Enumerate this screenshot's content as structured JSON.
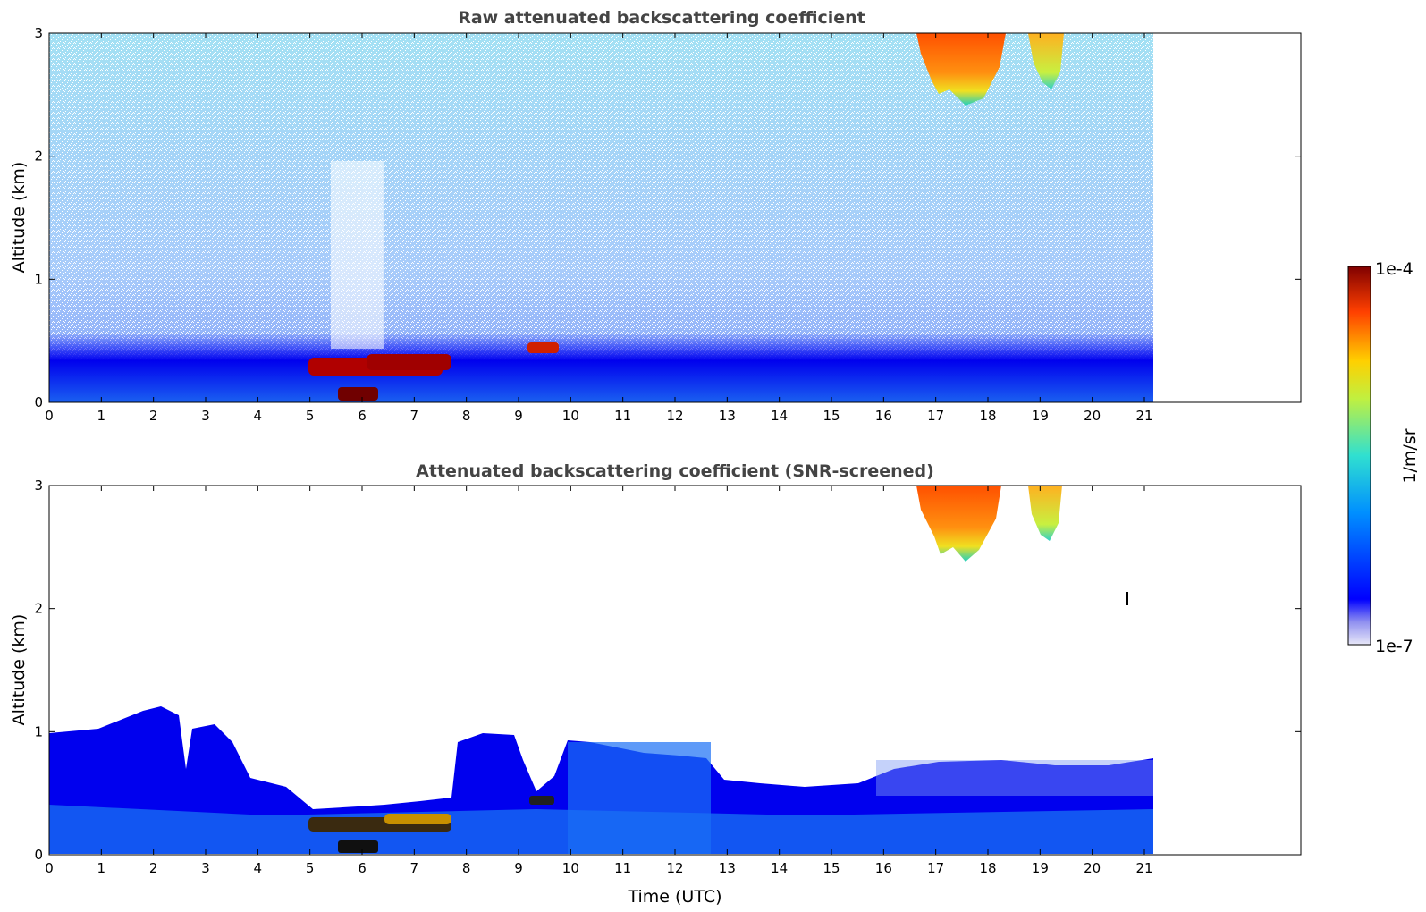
{
  "figure": {
    "colormap": "jet",
    "colorbar": {
      "max_label": "1e-4",
      "min_label": "1e-7",
      "label": "1/m/sr",
      "range": [
        1e-07,
        0.0001
      ],
      "scale": "log"
    }
  },
  "chart_data": [
    {
      "type": "heatmap",
      "title": "Raw attenuated backscattering coefficient",
      "xlabel": "",
      "ylabel": "Altitude (km)",
      "xlim": [
        0,
        24
      ],
      "ylim": [
        0,
        3
      ],
      "x_ticks": [
        "0",
        "1",
        "2",
        "3",
        "4",
        "5",
        "6",
        "7",
        "8",
        "9",
        "10",
        "11",
        "12",
        "13",
        "14",
        "15",
        "16",
        "17",
        "18",
        "19",
        "20",
        "21"
      ],
      "y_ticks": [
        "0",
        "1",
        "2",
        "3"
      ],
      "data_end_time": 21.15,
      "features": [
        {
          "name": "boundary-layer aerosol",
          "time_range": [
            0,
            21.15
          ],
          "altitude_range": [
            0,
            0.5
          ],
          "level": "medium"
        },
        {
          "name": "low cloud",
          "time_range": [
            4.9,
            8.3
          ],
          "altitude_range": [
            0.2,
            0.35
          ],
          "level": "very high"
        },
        {
          "name": "low cloud",
          "time_range": [
            9.0,
            9.8
          ],
          "altitude_range": [
            0.35,
            0.5
          ],
          "level": "high"
        },
        {
          "name": "ice cloud",
          "time_range": [
            16.7,
            18.3
          ],
          "altitude_range": [
            2.4,
            3.0
          ],
          "level": "high"
        },
        {
          "name": "ice cloud",
          "time_range": [
            18.8,
            19.5
          ],
          "altitude_range": [
            2.5,
            3.0
          ],
          "level": "medium-high"
        }
      ]
    },
    {
      "type": "heatmap",
      "title": "Attenuated backscattering coefficient (SNR-screened)",
      "xlabel": "Time (UTC)",
      "ylabel": "Altitude (km)",
      "xlim": [
        0,
        24
      ],
      "ylim": [
        0,
        3
      ],
      "x_ticks": [
        "0",
        "1",
        "2",
        "3",
        "4",
        "5",
        "6",
        "7",
        "8",
        "9",
        "10",
        "11",
        "12",
        "13",
        "14",
        "15",
        "16",
        "17",
        "18",
        "19",
        "20",
        "21"
      ],
      "y_ticks": [
        "0",
        "1",
        "2",
        "3"
      ],
      "data_end_time": 21.15,
      "features": [
        {
          "name": "screened aerosol layer",
          "time_range": [
            0,
            21.15
          ],
          "altitude_range": [
            0,
            1.0
          ],
          "level": "medium"
        },
        {
          "name": "low cloud",
          "time_range": [
            4.9,
            8.3
          ],
          "altitude_range": [
            0.2,
            0.35
          ],
          "level": "saturated"
        },
        {
          "name": "ice cloud",
          "time_range": [
            16.7,
            18.3
          ],
          "altitude_range": [
            2.4,
            3.0
          ],
          "level": "high"
        },
        {
          "name": "ice cloud",
          "time_range": [
            18.8,
            19.5
          ],
          "altitude_range": [
            2.5,
            3.0
          ],
          "level": "medium-high"
        }
      ]
    }
  ]
}
